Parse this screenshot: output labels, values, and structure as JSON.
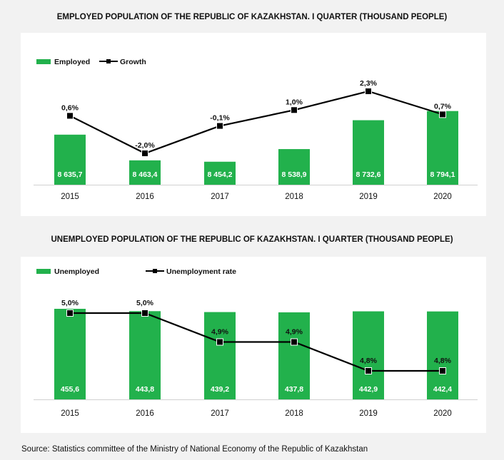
{
  "chart_data": [
    {
      "type": "bar",
      "title": "EMPLOYED POPULATION  OF THE REPUBLIC OF KAZAKHSTAN. I QUARTER (THOUSAND PEOPLE)",
      "categories": [
        "2015",
        "2016",
        "2017",
        "2018",
        "2019",
        "2020"
      ],
      "series": [
        {
          "name": "Employed",
          "type": "bar",
          "values": [
            8635.7,
            8463.4,
            8454.2,
            8538.9,
            8732.6,
            8794.1
          ],
          "labels": [
            "8 635,7",
            "8 463,4",
            "8 454,2",
            "8 538,9",
            "8 732,6",
            "8 794,1"
          ]
        },
        {
          "name": "Growth",
          "type": "line",
          "values": [
            0.6,
            -2.0,
            -0.1,
            1.0,
            2.3,
            0.7
          ],
          "labels": [
            "0,6%",
            "-2,0%",
            "-0,1%",
            "1,0%",
            "2,3%",
            "0,7%"
          ]
        }
      ],
      "legend": "top-left",
      "colors": {
        "bar": "#22b14c",
        "line": "#000000"
      }
    },
    {
      "type": "bar",
      "title": "UNEMPLOYED POPULATION  OF THE REPUBLIC OF KAZAKHSTAN. I QUARTER (THOUSAND PEOPLE)",
      "categories": [
        "2015",
        "2016",
        "2017",
        "2018",
        "2019",
        "2020"
      ],
      "series": [
        {
          "name": "Unemployed",
          "type": "bar",
          "values": [
            455.6,
            443.8,
            439.2,
            437.8,
            442.9,
            442.4
          ],
          "labels": [
            "455,6",
            "443,8",
            "439,2",
            "437,8",
            "442,9",
            "442,4"
          ]
        },
        {
          "name": "Unemployment rate",
          "type": "line",
          "values": [
            5.0,
            5.0,
            4.9,
            4.9,
            4.8,
            4.8
          ],
          "labels": [
            "5,0%",
            "5,0%",
            "4,9%",
            "4,9%",
            "4,8%",
            "4,8%"
          ]
        }
      ],
      "legend": "top-left",
      "colors": {
        "bar": "#22b14c",
        "line": "#000000"
      }
    }
  ],
  "source": "Source: Statistics committee of the Ministry of National Economy of the Republic of Kazakhstan"
}
